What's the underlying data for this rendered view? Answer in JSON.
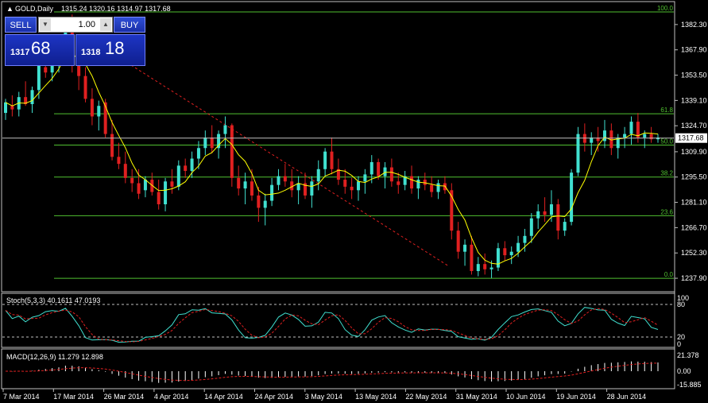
{
  "main_header": {
    "arrow": "▲",
    "title": "GOLD,Daily",
    "ohlc": "1315.24 1320.16 1314.97 1317.68"
  },
  "trade_panel": {
    "sell_label": "SELL",
    "buy_label": "BUY",
    "lot_value": "1.00",
    "sell_price_small": "1317",
    "sell_price_big": "68",
    "buy_price_small": "1318",
    "buy_price_big": "18"
  },
  "price_axis": {
    "ticks": [
      "1382.30",
      "1367.90",
      "1353.50",
      "1339.10",
      "1324.70",
      "1309.90",
      "1295.50",
      "1281.10",
      "1266.70",
      "1252.30",
      "1237.90"
    ],
    "current_price": "1317.68"
  },
  "fibonacci": {
    "levels": [
      {
        "label": "100.0",
        "price": 1389.5
      },
      {
        "label": "61.8",
        "price": 1331.5
      },
      {
        "label": "50.0",
        "price": 1313.7
      },
      {
        "label": "38.2",
        "price": 1295.5
      },
      {
        "label": "23.6",
        "price": 1273.5
      },
      {
        "label": "0.0",
        "price": 1237.9
      }
    ]
  },
  "stoch": {
    "header": "Stoch(5,3,3) 40.1611 47.0193",
    "axis": [
      "100",
      "80",
      "20",
      "0"
    ]
  },
  "macd": {
    "header": "MACD(12,26,9) 11.279 12.898",
    "axis": [
      "21.378",
      "0.00",
      "-15.885"
    ]
  },
  "time_axis": [
    "7 Mar 2014",
    "17 Mar 2014",
    "26 Mar 2014",
    "4 Apr 2014",
    "14 Apr 2014",
    "24 Apr 2014",
    "3 May 2014",
    "13 May 2014",
    "22 May 2014",
    "31 May 2014",
    "10 Jun 2014",
    "19 Jun 2014",
    "28 Jun 2014"
  ],
  "colors": {
    "bull": "#40e0d0",
    "bear": "#e02020",
    "ma": "#ffff00",
    "fib": "#50c030",
    "grid": "#c0c0c0"
  },
  "chart_data": {
    "type": "candlestick",
    "title": "GOLD,Daily",
    "ylim": [
      1232.5,
      1394
    ],
    "candles": [
      [
        1332,
        1340,
        1328,
        1338
      ],
      [
        1336,
        1342,
        1330,
        1334
      ],
      [
        1334,
        1344,
        1330,
        1341
      ],
      [
        1341,
        1350,
        1336,
        1337
      ],
      [
        1337,
        1347,
        1332,
        1345
      ],
      [
        1345,
        1362,
        1340,
        1360
      ],
      [
        1358,
        1366,
        1352,
        1355
      ],
      [
        1355,
        1365,
        1350,
        1361
      ],
      [
        1362,
        1368,
        1355,
        1364
      ],
      [
        1365,
        1386,
        1360,
        1382
      ],
      [
        1382,
        1388,
        1355,
        1360
      ],
      [
        1360,
        1366,
        1345,
        1353
      ],
      [
        1353,
        1358,
        1338,
        1340
      ],
      [
        1340,
        1346,
        1325,
        1330
      ],
      [
        1330,
        1339,
        1322,
        1336
      ],
      [
        1338,
        1340,
        1318,
        1320
      ],
      [
        1320,
        1328,
        1305,
        1307
      ],
      [
        1307,
        1315,
        1300,
        1303
      ],
      [
        1303,
        1310,
        1292,
        1295
      ],
      [
        1295,
        1300,
        1287,
        1292
      ],
      [
        1292,
        1300,
        1283,
        1286
      ],
      [
        1288,
        1296,
        1284,
        1294
      ],
      [
        1294,
        1298,
        1285,
        1287
      ],
      [
        1287,
        1294,
        1277,
        1280
      ],
      [
        1280,
        1295,
        1276,
        1293
      ],
      [
        1293,
        1300,
        1286,
        1290
      ],
      [
        1290,
        1305,
        1288,
        1302
      ],
      [
        1302,
        1306,
        1295,
        1299
      ],
      [
        1299,
        1310,
        1295,
        1306
      ],
      [
        1306,
        1316,
        1300,
        1312
      ],
      [
        1312,
        1322,
        1308,
        1318
      ],
      [
        1318,
        1325,
        1309,
        1312
      ],
      [
        1312,
        1322,
        1306,
        1320
      ],
      [
        1320,
        1330,
        1312,
        1325
      ],
      [
        1325,
        1326,
        1290,
        1295
      ],
      [
        1295,
        1302,
        1285,
        1289
      ],
      [
        1289,
        1298,
        1280,
        1293
      ],
      [
        1293,
        1300,
        1282,
        1285
      ],
      [
        1285,
        1290,
        1270,
        1278
      ],
      [
        1278,
        1286,
        1268,
        1282
      ],
      [
        1282,
        1295,
        1279,
        1291
      ],
      [
        1291,
        1300,
        1288,
        1296
      ],
      [
        1296,
        1303,
        1290,
        1293
      ],
      [
        1293,
        1300,
        1284,
        1288
      ],
      [
        1288,
        1296,
        1280,
        1292
      ],
      [
        1292,
        1298,
        1283,
        1285
      ],
      [
        1285,
        1296,
        1278,
        1293
      ],
      [
        1293,
        1305,
        1288,
        1300
      ],
      [
        1300,
        1312,
        1296,
        1310
      ],
      [
        1310,
        1318,
        1297,
        1300
      ],
      [
        1300,
        1306,
        1291,
        1294
      ],
      [
        1294,
        1300,
        1286,
        1290
      ],
      [
        1290,
        1295,
        1283,
        1288
      ],
      [
        1288,
        1296,
        1282,
        1293
      ],
      [
        1293,
        1300,
        1286,
        1297
      ],
      [
        1297,
        1308,
        1292,
        1304
      ],
      [
        1304,
        1306,
        1294,
        1296
      ],
      [
        1296,
        1304,
        1289,
        1301
      ],
      [
        1301,
        1306,
        1290,
        1293
      ],
      [
        1293,
        1298,
        1286,
        1291
      ],
      [
        1291,
        1299,
        1288,
        1296
      ],
      [
        1296,
        1302,
        1286,
        1289
      ],
      [
        1289,
        1296,
        1283,
        1294
      ],
      [
        1294,
        1298,
        1288,
        1291
      ],
      [
        1291,
        1296,
        1284,
        1287
      ],
      [
        1287,
        1294,
        1283,
        1292
      ],
      [
        1292,
        1296,
        1286,
        1288
      ],
      [
        1288,
        1292,
        1260,
        1265
      ],
      [
        1265,
        1270,
        1249,
        1253
      ],
      [
        1253,
        1260,
        1245,
        1257
      ],
      [
        1257,
        1262,
        1240,
        1242
      ],
      [
        1242,
        1250,
        1239,
        1246
      ],
      [
        1246,
        1252,
        1240,
        1243
      ],
      [
        1243,
        1248,
        1238,
        1244
      ],
      [
        1244,
        1258,
        1242,
        1255
      ],
      [
        1255,
        1259,
        1248,
        1251
      ],
      [
        1251,
        1256,
        1246,
        1253
      ],
      [
        1253,
        1262,
        1250,
        1258
      ],
      [
        1258,
        1266,
        1253,
        1262
      ],
      [
        1262,
        1275,
        1258,
        1272
      ],
      [
        1272,
        1280,
        1266,
        1276
      ],
      [
        1276,
        1284,
        1270,
        1274
      ],
      [
        1274,
        1288,
        1270,
        1280
      ],
      [
        1280,
        1283,
        1260,
        1265
      ],
      [
        1265,
        1272,
        1262,
        1270
      ],
      [
        1270,
        1300,
        1268,
        1298
      ],
      [
        1298,
        1324,
        1296,
        1320
      ],
      [
        1320,
        1326,
        1310,
        1315
      ],
      [
        1315,
        1321,
        1308,
        1318
      ],
      [
        1318,
        1324,
        1310,
        1316
      ],
      [
        1316,
        1328,
        1312,
        1322
      ],
      [
        1322,
        1326,
        1308,
        1312
      ],
      [
        1312,
        1320,
        1306,
        1318
      ],
      [
        1318,
        1324,
        1312,
        1320
      ],
      [
        1320,
        1330,
        1314,
        1327
      ],
      [
        1327,
        1332,
        1315,
        1318
      ],
      [
        1318,
        1322,
        1312,
        1320
      ],
      [
        1320,
        1324,
        1315,
        1317
      ],
      [
        1317,
        1320,
        1315,
        1318
      ]
    ]
  }
}
